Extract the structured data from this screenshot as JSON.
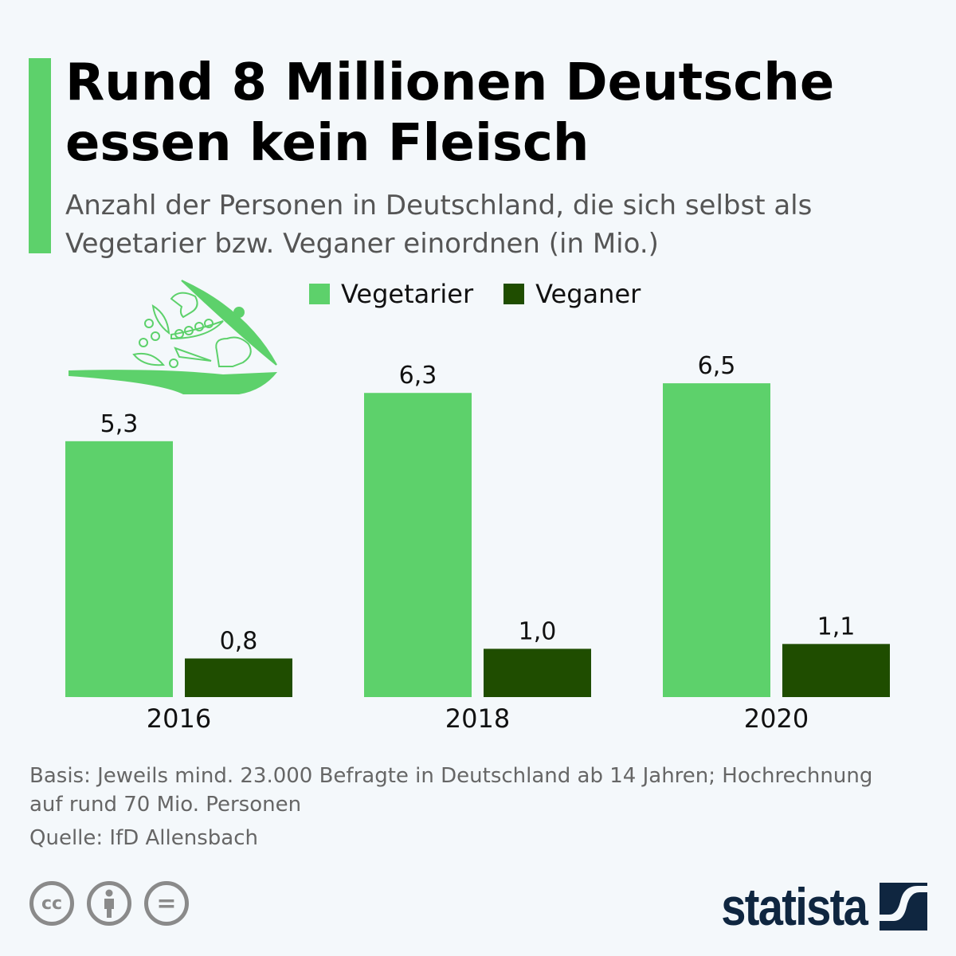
{
  "title": "Rund 8 Millionen Deutsche essen kein Fleisch",
  "subtitle": "Anzahl der Personen in Deutschland, die sich selbst als Vegetarier bzw. Veganer einordnen (in Mio.)",
  "colors": {
    "accent": "#5dd16b",
    "vegetarier": "#5dd16b",
    "veganer": "#1f4d00",
    "logo": "#0f2640"
  },
  "chart_data": {
    "type": "bar",
    "categories": [
      "2016",
      "2018",
      "2020"
    ],
    "series": [
      {
        "name": "Vegetarier",
        "values": [
          5.3,
          6.3,
          6.5
        ],
        "labels": [
          "5,3",
          "6,3",
          "6,5"
        ]
      },
      {
        "name": "Veganer",
        "values": [
          0.8,
          1.0,
          1.1
        ],
        "labels": [
          "0,8",
          "1,0",
          "1,1"
        ]
      }
    ],
    "legend": "top",
    "grid": false,
    "ylim": [
      0,
      7
    ]
  },
  "footer": {
    "basis": "Basis: Jeweils mind. 23.000 Befragte in Deutschland ab 14 Jahren; Hochrechnung auf rund 70 Mio. Personen",
    "source": "Quelle: IfD Allensbach"
  },
  "license_icons": [
    "cc-icon",
    "attribution-icon",
    "no-derivatives-icon"
  ],
  "license_text": {
    "cc": "cc",
    "eq": "="
  },
  "logo": "statista",
  "illustration": "vegetables-pan-icon"
}
